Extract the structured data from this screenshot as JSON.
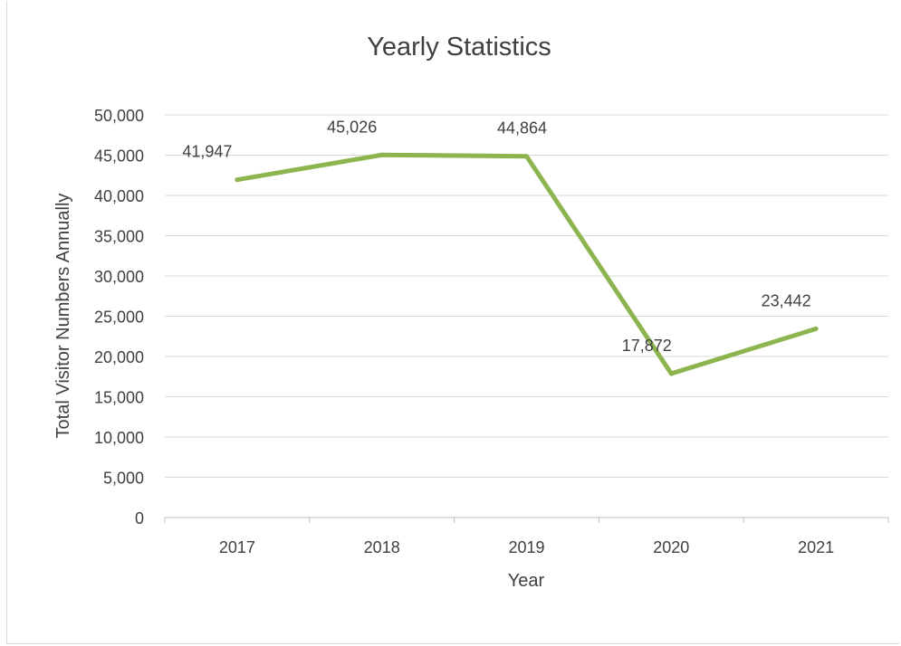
{
  "chart_data": {
    "type": "line",
    "title": "Yearly Statistics",
    "xlabel": "Year",
    "ylabel": "Total Visitor Numbers Annually",
    "categories": [
      "2017",
      "2018",
      "2019",
      "2020",
      "2021"
    ],
    "series": [
      {
        "values": [
          41947,
          45026,
          44864,
          17872,
          23442
        ],
        "labels": [
          "41,947",
          "45,026",
          "44,864",
          "17,872",
          "23,442"
        ],
        "color": "#8db54f"
      }
    ],
    "ylim": [
      0,
      50000
    ],
    "yticks": [
      0,
      5000,
      10000,
      15000,
      20000,
      25000,
      30000,
      35000,
      40000,
      45000,
      50000
    ],
    "ytick_labels": [
      "0",
      "5,000",
      "10,000",
      "15,000",
      "20,000",
      "25,000",
      "30,000",
      "35,000",
      "40,000",
      "45,000",
      "50,000"
    ],
    "grid": true,
    "legend": "none",
    "colors": {
      "gridline": "#d9d9d9",
      "axis": "#bfbfbf",
      "text": "#404040",
      "title": "#404040"
    }
  }
}
